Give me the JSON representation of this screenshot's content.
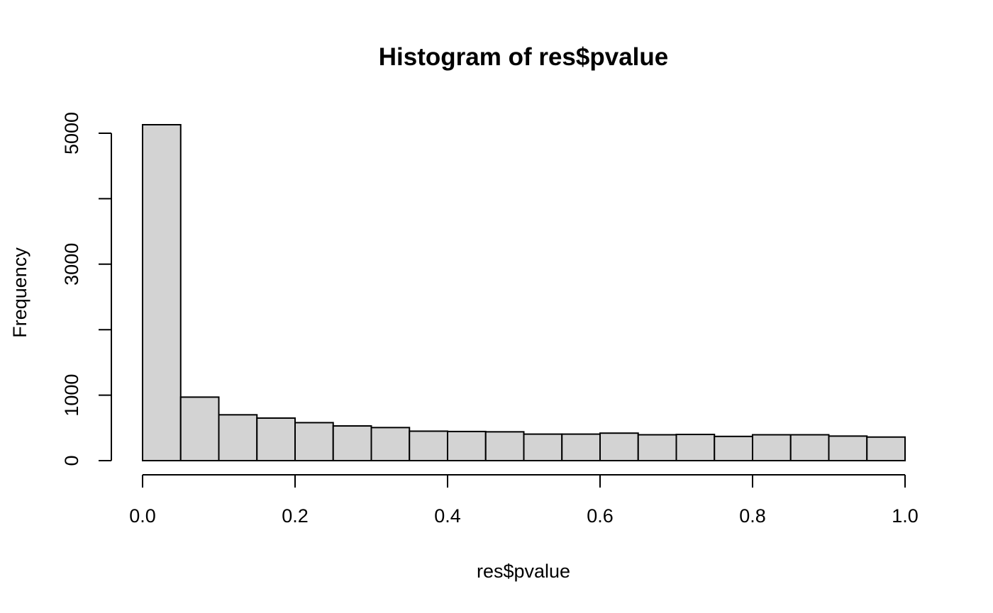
{
  "chart_data": {
    "type": "bar",
    "title": "Histogram of res$pvalue",
    "xlabel": "res$pvalue",
    "ylabel": "Frequency",
    "bin_edges": [
      0.0,
      0.05,
      0.1,
      0.15,
      0.2,
      0.25,
      0.3,
      0.35,
      0.4,
      0.45,
      0.5,
      0.55,
      0.6,
      0.65,
      0.7,
      0.75,
      0.8,
      0.85,
      0.9,
      0.95,
      1.0
    ],
    "values": [
      5130,
      970,
      700,
      650,
      580,
      530,
      505,
      450,
      445,
      440,
      405,
      405,
      420,
      395,
      400,
      370,
      395,
      395,
      375,
      360
    ],
    "xlim": [
      0,
      1
    ],
    "ylim": [
      0,
      5130
    ],
    "x_ticks": [
      0.0,
      0.2,
      0.4,
      0.6,
      0.8,
      1.0
    ],
    "x_tick_labels": [
      "0.0",
      "0.2",
      "0.4",
      "0.6",
      "0.8",
      "1.0"
    ],
    "y_ticks": [
      0,
      1000,
      2000,
      3000,
      4000,
      5000
    ],
    "y_tick_labels": [
      "0",
      "1000",
      "",
      "3000",
      "",
      "5000"
    ],
    "bar_fill": "#d3d3d3",
    "bar_stroke": "#000000",
    "grid": false,
    "legend": "none"
  }
}
